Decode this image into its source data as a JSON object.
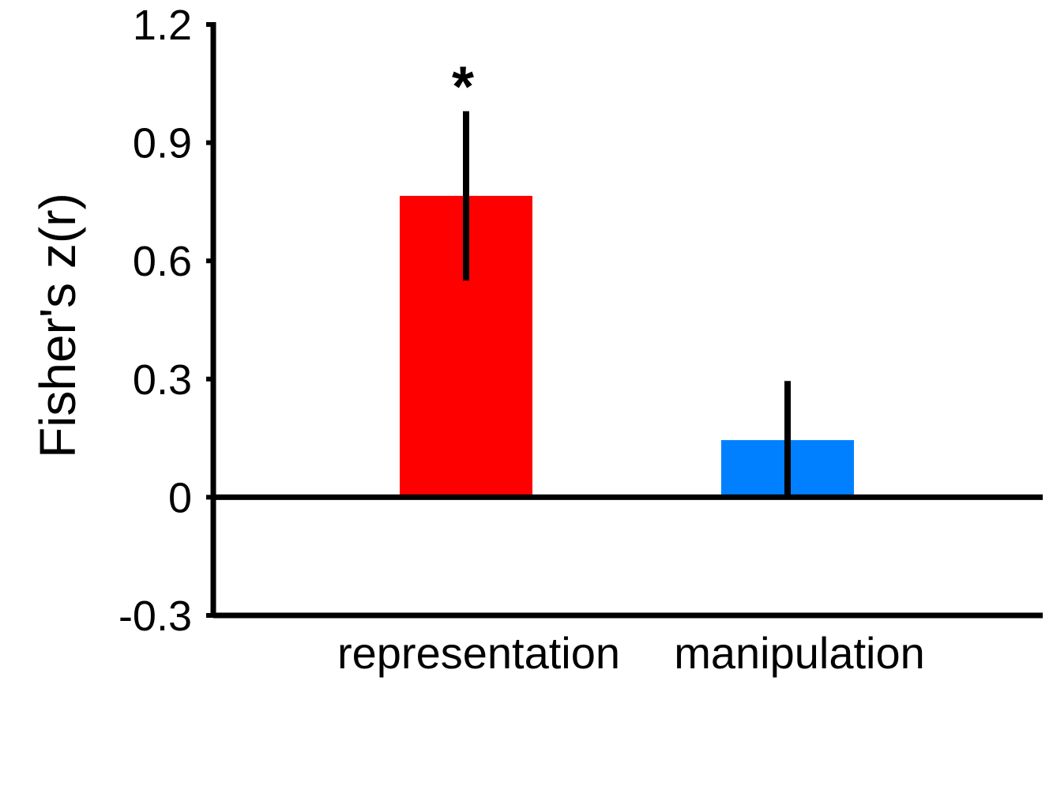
{
  "chart_data": {
    "type": "bar",
    "title": "",
    "xlabel": "",
    "ylabel": "Fisher's z(r)",
    "ylim": [
      -0.3,
      1.2
    ],
    "yticks": [
      1.2,
      0.9,
      0.6,
      0.3,
      0,
      -0.3
    ],
    "ytick_labels": [
      "1.2",
      "0.9",
      "0.6",
      "0.3",
      "0",
      "-0.3"
    ],
    "categories": [
      "representation",
      "manipulation"
    ],
    "values": [
      0.765,
      0.145
    ],
    "error_low": [
      0.55,
      -0.005
    ],
    "error_high": [
      0.98,
      0.295
    ],
    "colors": [
      "#ff0000",
      "#0080ff"
    ],
    "annotations": [
      "*",
      ""
    ],
    "grid": false
  }
}
